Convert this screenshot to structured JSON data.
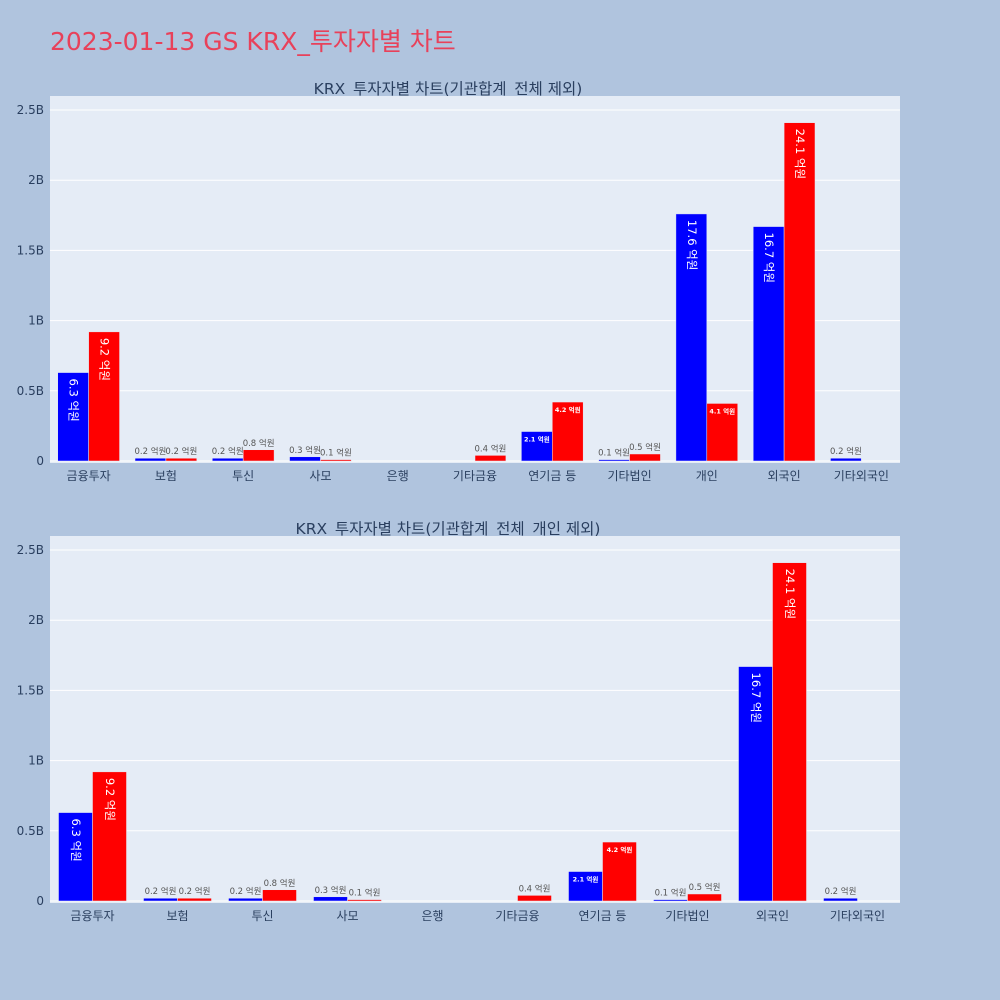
{
  "page_title": "2023-01-13 GS KRX_투자자별 차트",
  "colors": {
    "buy": "#0000ff",
    "sell": "#ff0000",
    "plot_bg": "#e5ecf6",
    "paper_bg": "#b0c4de",
    "title": "#e8415a"
  },
  "chart_data": [
    {
      "type": "bar",
      "title": "KRX_투자자별 차트(기관합계_전체 제외)",
      "categories": [
        "금융투자",
        "보험",
        "투신",
        "사모",
        "은행",
        "기타금융",
        "연기금 등",
        "기타법인",
        "개인",
        "외국인",
        "기타외국인"
      ],
      "yticks": [
        "0",
        "0.5B",
        "1B",
        "1.5B",
        "2B",
        "2.5B"
      ],
      "ylim": [
        0,
        2.6
      ],
      "grid": true,
      "series": [
        {
          "color": "#0000ff",
          "values": [
            0.63,
            0.02,
            0.02,
            0.03,
            0,
            0,
            0.21,
            0.01,
            1.76,
            1.67,
            0.02
          ],
          "labels": [
            "6.3 억원",
            "0.2 억원",
            "0.2 억원",
            "0.3 억원",
            "",
            "",
            "2.1 억원",
            "0.1 억원",
            "17.6 억원",
            "16.7 억원",
            "0.2 억원"
          ]
        },
        {
          "color": "#ff0000",
          "values": [
            0.92,
            0.02,
            0.08,
            0.01,
            0,
            0.04,
            0.42,
            0.05,
            0.41,
            2.41,
            0
          ],
          "labels": [
            "9.2 억원",
            "0.2 억원",
            "0.8 억원",
            "0.1 억원",
            "",
            "0.4 억원",
            "4.2 억원",
            "0.5 억원",
            "4.1 억원",
            "24.1 억원",
            ""
          ]
        }
      ]
    },
    {
      "type": "bar",
      "title": "KRX_투자자별 차트(기관합계_전체_개인 제외)",
      "categories": [
        "금융투자",
        "보험",
        "투신",
        "사모",
        "은행",
        "기타금융",
        "연기금 등",
        "기타법인",
        "외국인",
        "기타외국인"
      ],
      "yticks": [
        "0",
        "0.5B",
        "1B",
        "1.5B",
        "2B",
        "2.5B"
      ],
      "ylim": [
        0,
        2.6
      ],
      "grid": true,
      "series": [
        {
          "color": "#0000ff",
          "values": [
            0.63,
            0.02,
            0.02,
            0.03,
            0,
            0,
            0.21,
            0.01,
            1.67,
            0.02
          ],
          "labels": [
            "6.3 억원",
            "0.2 억원",
            "0.2 억원",
            "0.3 억원",
            "",
            "",
            "2.1 억원",
            "0.1 억원",
            "16.7 억원",
            "0.2 억원"
          ]
        },
        {
          "color": "#ff0000",
          "values": [
            0.92,
            0.02,
            0.08,
            0.01,
            0,
            0.04,
            0.42,
            0.05,
            2.41,
            0
          ],
          "labels": [
            "9.2 억원",
            "0.2 억원",
            "0.8 억원",
            "0.1 억원",
            "",
            "0.4 억원",
            "4.2 억원",
            "0.5 억원",
            "24.1 억원",
            ""
          ]
        }
      ]
    }
  ]
}
